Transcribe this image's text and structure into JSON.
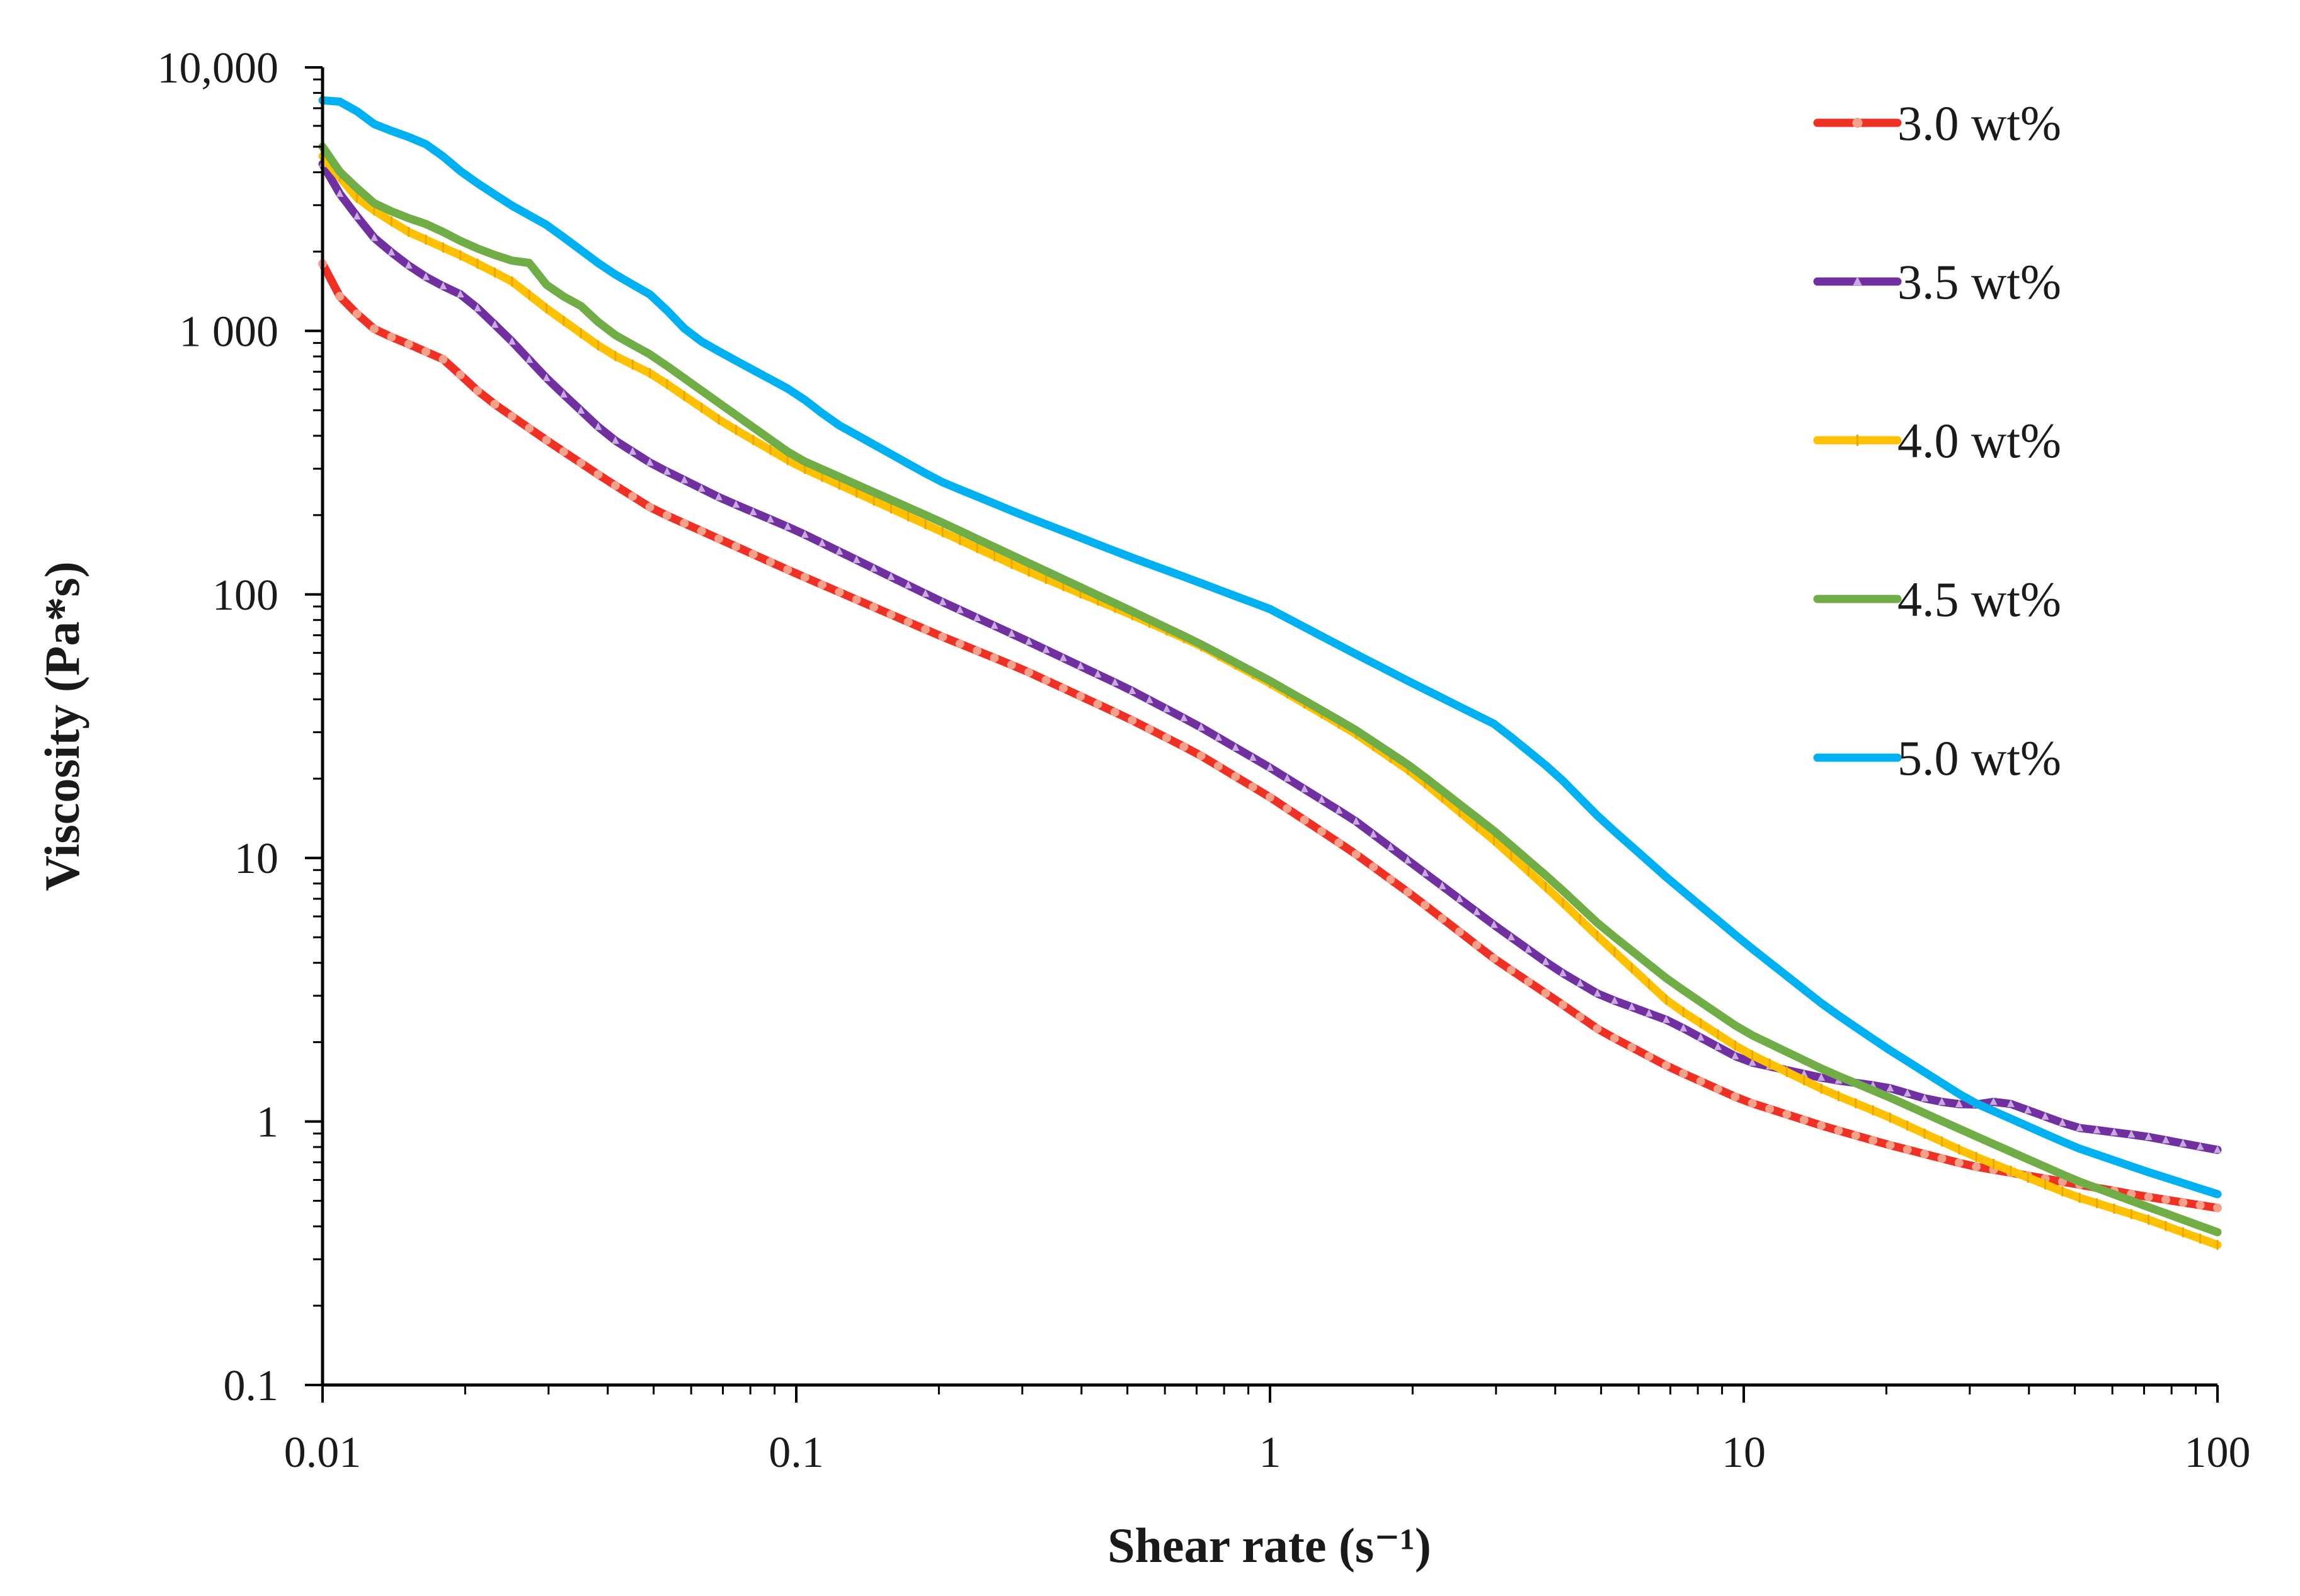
{
  "chart_data": {
    "type": "line",
    "xscale": "log",
    "yscale": "log",
    "xlabel": "Shear rate (s⁻¹)",
    "ylabel": "Viscosity (Pa*s)",
    "xlim": [
      0.01,
      100
    ],
    "ylim": [
      0.1,
      10000
    ],
    "grid": false,
    "legend_position": "top-right",
    "xticks": [
      {
        "value": 0.01,
        "label": "0.01"
      },
      {
        "value": 0.1,
        "label": "0.1"
      },
      {
        "value": 1,
        "label": "1"
      },
      {
        "value": 10,
        "label": "10"
      },
      {
        "value": 100,
        "label": "100"
      }
    ],
    "yticks": [
      {
        "value": 0.1,
        "label": "0.1"
      },
      {
        "value": 1,
        "label": "1"
      },
      {
        "value": 10,
        "label": "10"
      },
      {
        "value": 100,
        "label": "100"
      },
      {
        "value": 1000,
        "label": "1 000"
      },
      {
        "value": 10000,
        "label": "10,000"
      }
    ],
    "series": [
      {
        "name": "3.0 wt%",
        "color": "#ee3124",
        "marker": "circle",
        "x": [
          0.01,
          0.011,
          0.013,
          0.015,
          0.018,
          0.022,
          0.03,
          0.04,
          0.05,
          0.07,
          0.1,
          0.2,
          0.3,
          0.5,
          0.7,
          1,
          1.5,
          2,
          3,
          4,
          5,
          7,
          10,
          15,
          20,
          30,
          50,
          70,
          100
        ],
        "values": [
          1800,
          1300,
          1000,
          900,
          780,
          560,
          380,
          270,
          210,
          160,
          120,
          70,
          52,
          34,
          25,
          17,
          10.5,
          7.2,
          4.1,
          2.9,
          2.2,
          1.6,
          1.2,
          0.95,
          0.82,
          0.68,
          0.58,
          0.52,
          0.47
        ]
      },
      {
        "name": "3.5 wt%",
        "color": "#7030a0",
        "marker": "triangle",
        "x": [
          0.01,
          0.011,
          0.013,
          0.015,
          0.017,
          0.02,
          0.022,
          0.025,
          0.03,
          0.04,
          0.05,
          0.07,
          0.1,
          0.2,
          0.3,
          0.5,
          0.7,
          1,
          1.5,
          2,
          3,
          4,
          5,
          7,
          10,
          15,
          20,
          25,
          30,
          35,
          40,
          50,
          70,
          100
        ],
        "values": [
          4300,
          3200,
          2200,
          1800,
          1550,
          1350,
          1150,
          920,
          650,
          400,
          310,
          230,
          175,
          95,
          68,
          44,
          32,
          22,
          14,
          9.5,
          5.5,
          3.8,
          3.0,
          2.4,
          1.7,
          1.45,
          1.35,
          1.2,
          1.15,
          1.2,
          1.1,
          0.95,
          0.88,
          0.78
        ]
      },
      {
        "name": "4.0 wt%",
        "color": "#ffc000",
        "marker": "dash",
        "x": [
          0.01,
          0.012,
          0.015,
          0.02,
          0.025,
          0.03,
          0.04,
          0.05,
          0.07,
          0.1,
          0.2,
          0.3,
          0.5,
          0.7,
          1,
          1.5,
          2,
          3,
          4,
          5,
          7,
          10,
          15,
          20,
          30,
          50,
          70,
          100
        ],
        "values": [
          4600,
          3100,
          2400,
          1900,
          1550,
          1200,
          830,
          680,
          450,
          310,
          175,
          125,
          85,
          65,
          46,
          30,
          21,
          11.5,
          7.2,
          4.9,
          2.8,
          1.85,
          1.3,
          1.05,
          0.75,
          0.52,
          0.43,
          0.34
        ]
      },
      {
        "name": "4.5 wt%",
        "color": "#70ad47",
        "marker": "none",
        "x": [
          0.01,
          0.011,
          0.013,
          0.015,
          0.017,
          0.02,
          0.022,
          0.025,
          0.028,
          0.03,
          0.035,
          0.04,
          0.05,
          0.07,
          0.1,
          0.2,
          0.3,
          0.5,
          0.7,
          1,
          1.5,
          2,
          3,
          4,
          5,
          7,
          10,
          15,
          20,
          30,
          50,
          70,
          100
        ],
        "values": [
          5000,
          3900,
          3000,
          2700,
          2500,
          2150,
          2000,
          1850,
          1800,
          1450,
          1250,
          1000,
          800,
          520,
          330,
          190,
          135,
          88,
          66,
          47,
          31,
          22,
          12.5,
          8.0,
          5.5,
          3.4,
          2.2,
          1.55,
          1.25,
          0.9,
          0.6,
          0.48,
          0.38
        ]
      },
      {
        "name": "5.0 wt%",
        "color": "#00b0f0",
        "marker": "none",
        "x": [
          0.01,
          0.011,
          0.012,
          0.013,
          0.015,
          0.017,
          0.02,
          0.025,
          0.03,
          0.04,
          0.05,
          0.06,
          0.07,
          0.1,
          0.12,
          0.15,
          0.2,
          0.3,
          0.5,
          0.7,
          1,
          1.5,
          2,
          3,
          4,
          5,
          7,
          10,
          15,
          20,
          30,
          50,
          70,
          100
        ],
        "values": [
          7500,
          7400,
          6700,
          6000,
          5500,
          5000,
          3900,
          3000,
          2500,
          1700,
          1350,
          960,
          820,
          580,
          450,
          360,
          270,
          200,
          140,
          112,
          88,
          60,
          46,
          32,
          21,
          14,
          8.2,
          4.8,
          2.7,
          1.9,
          1.2,
          0.8,
          0.65,
          0.53
        ]
      }
    ]
  }
}
